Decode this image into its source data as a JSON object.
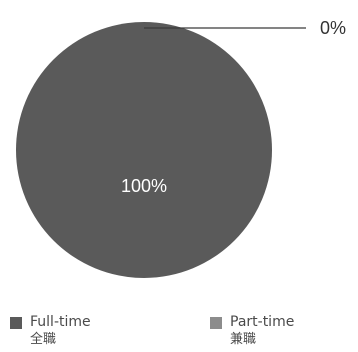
{
  "chart_data": {
    "type": "pie",
    "title": "",
    "categories": [
      "Full-time 全職",
      "Part-time 兼職"
    ],
    "values": [
      100,
      0
    ],
    "labels": [
      "100%",
      "0%"
    ],
    "colors": [
      "#5a5a5a",
      "#8c8c8c"
    ],
    "legend_position": "bottom",
    "legend": [
      {
        "en": "Full-time",
        "zh": "全職",
        "color": "#5a5a5a"
      },
      {
        "en": "Part-time",
        "zh": "兼職",
        "color": "#8c8c8c"
      }
    ]
  }
}
